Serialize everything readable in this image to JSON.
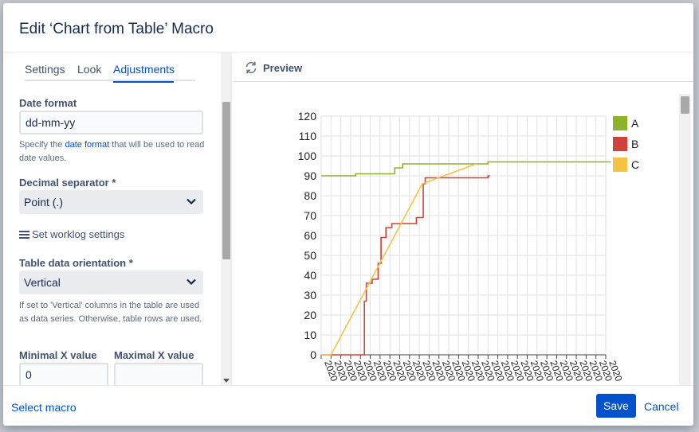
{
  "dialog": {
    "title": "Edit ‘Chart from Table’ Macro"
  },
  "tabs": [
    {
      "label": "Settings"
    },
    {
      "label": "Look"
    },
    {
      "label": "Adjustments"
    }
  ],
  "form": {
    "date_format": {
      "label": "Date format",
      "value": "dd-mm-yy",
      "help_prefix": "Specify the ",
      "help_link": "date format",
      "help_suffix": " that will be used to read date values."
    },
    "decimal_separator": {
      "label": "Decimal separator *",
      "value": "Point (.)"
    },
    "worklog_label": "Set worklog settings",
    "table_orientation": {
      "label": "Table data orientation *",
      "value": "Vertical",
      "help": "If set to 'Vertical' columns in the table are used as data series. Otherwise, table rows are used."
    },
    "min_x": {
      "label": "Minimal X value",
      "value": "0"
    },
    "max_x": {
      "label": "Maximal X value",
      "value": ""
    }
  },
  "preview": {
    "label": "Preview"
  },
  "footer": {
    "select_macro": "Select macro",
    "save": "Save",
    "cancel": "Cancel"
  },
  "chart_data": {
    "type": "line",
    "title": "",
    "ylim": [
      0,
      120
    ],
    "yticks": [
      0,
      10,
      20,
      30,
      40,
      50,
      60,
      70,
      80,
      90,
      100,
      110,
      120
    ],
    "x_tick_count": 30,
    "x_tick_label": "2020",
    "legend_position": "right",
    "grid": true,
    "series": [
      {
        "name": "A",
        "color": "#8db32a",
        "points": [
          [
            0,
            90
          ],
          [
            3.5,
            90
          ],
          [
            3.5,
            91
          ],
          [
            7.5,
            91
          ],
          [
            7.5,
            94
          ],
          [
            8.3,
            94
          ],
          [
            8.3,
            96
          ],
          [
            17,
            96
          ],
          [
            17,
            97
          ],
          [
            29.5,
            97
          ]
        ]
      },
      {
        "name": "B",
        "color": "#d0433c",
        "points": [
          [
            0,
            0
          ],
          [
            4,
            0
          ],
          [
            4,
            0
          ],
          [
            4.4,
            0
          ],
          [
            4.4,
            27
          ],
          [
            4.6,
            27
          ],
          [
            4.6,
            36
          ],
          [
            5.2,
            36
          ],
          [
            5.2,
            38
          ],
          [
            5.8,
            38
          ],
          [
            5.8,
            46
          ],
          [
            6.1,
            46
          ],
          [
            6.1,
            59
          ],
          [
            6.6,
            59
          ],
          [
            6.6,
            64
          ],
          [
            7.2,
            64
          ],
          [
            7.2,
            66
          ],
          [
            9.7,
            66
          ],
          [
            9.7,
            69
          ],
          [
            10.4,
            69
          ],
          [
            10.4,
            86
          ],
          [
            10.6,
            86
          ],
          [
            10.6,
            89
          ],
          [
            17,
            89
          ],
          [
            17,
            90
          ],
          [
            17.2,
            90
          ]
        ]
      },
      {
        "name": "C",
        "color": "#f5c242",
        "points": [
          [
            0,
            0
          ],
          [
            1,
            0
          ],
          [
            10.3,
            86
          ],
          [
            15.8,
            96
          ]
        ]
      }
    ]
  }
}
